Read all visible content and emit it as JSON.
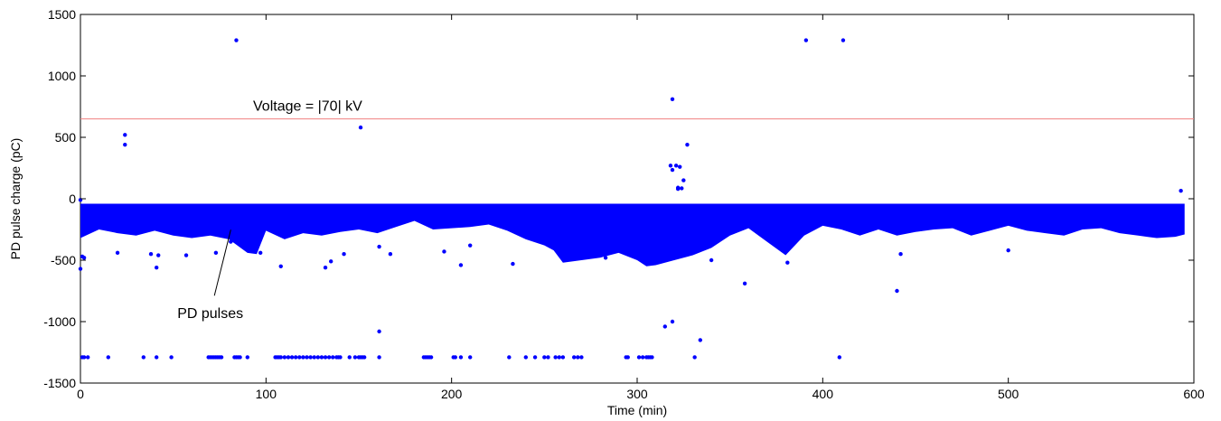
{
  "chart_data": {
    "type": "scatter",
    "title": "",
    "xlabel": "Time (min)",
    "ylabel": "PD pulse charge (pC)",
    "xlim": [
      0,
      600
    ],
    "ylim": [
      -1500,
      1500
    ],
    "xticks": [
      0,
      100,
      200,
      300,
      400,
      500,
      600
    ],
    "yticks": [
      -1500,
      -1000,
      -500,
      0,
      500,
      1000,
      1500
    ],
    "grid": false,
    "colors": {
      "points": "#0000ff",
      "threshold": "#f08080",
      "axis": "#000000"
    },
    "threshold_line": {
      "y": 650,
      "x_range": [
        0,
        600
      ],
      "label": "Voltage = |70| kV"
    },
    "annotations": [
      {
        "text": "PD pulses",
        "target": [
          82,
          -230
        ],
        "text_at": [
          60,
          -950
        ]
      }
    ],
    "band": {
      "x_range": [
        0,
        595
      ],
      "top": -40,
      "envelope": [
        [
          0,
          -320
        ],
        [
          10,
          -250
        ],
        [
          20,
          -280
        ],
        [
          30,
          -300
        ],
        [
          40,
          -260
        ],
        [
          50,
          -300
        ],
        [
          60,
          -320
        ],
        [
          70,
          -300
        ],
        [
          80,
          -330
        ],
        [
          90,
          -440
        ],
        [
          95,
          -450
        ],
        [
          100,
          -260
        ],
        [
          110,
          -330
        ],
        [
          120,
          -280
        ],
        [
          130,
          -300
        ],
        [
          140,
          -270
        ],
        [
          150,
          -250
        ],
        [
          160,
          -280
        ],
        [
          170,
          -230
        ],
        [
          180,
          -180
        ],
        [
          190,
          -250
        ],
        [
          200,
          -240
        ],
        [
          210,
          -230
        ],
        [
          220,
          -210
        ],
        [
          230,
          -260
        ],
        [
          240,
          -330
        ],
        [
          250,
          -380
        ],
        [
          255,
          -420
        ],
        [
          260,
          -520
        ],
        [
          270,
          -500
        ],
        [
          280,
          -480
        ],
        [
          290,
          -440
        ],
        [
          300,
          -500
        ],
        [
          305,
          -550
        ],
        [
          310,
          -540
        ],
        [
          320,
          -500
        ],
        [
          330,
          -460
        ],
        [
          340,
          -400
        ],
        [
          350,
          -300
        ],
        [
          360,
          -240
        ],
        [
          370,
          -350
        ],
        [
          380,
          -460
        ],
        [
          390,
          -300
        ],
        [
          400,
          -220
        ],
        [
          410,
          -250
        ],
        [
          420,
          -300
        ],
        [
          430,
          -250
        ],
        [
          440,
          -300
        ],
        [
          450,
          -270
        ],
        [
          460,
          -250
        ],
        [
          470,
          -240
        ],
        [
          480,
          -300
        ],
        [
          490,
          -260
        ],
        [
          500,
          -220
        ],
        [
          510,
          -260
        ],
        [
          520,
          -280
        ],
        [
          530,
          -300
        ],
        [
          540,
          -250
        ],
        [
          550,
          -240
        ],
        [
          560,
          -280
        ],
        [
          570,
          -300
        ],
        [
          580,
          -320
        ],
        [
          590,
          -310
        ],
        [
          595,
          -290
        ]
      ]
    },
    "points": [
      [
        0,
        -10
      ],
      [
        1,
        -470
      ],
      [
        2,
        -480
      ],
      [
        0,
        -570
      ],
      [
        24,
        520
      ],
      [
        24,
        440
      ],
      [
        84,
        1290
      ],
      [
        151,
        580
      ],
      [
        319,
        810
      ],
      [
        318,
        270
      ],
      [
        321,
        270
      ],
      [
        319,
        235
      ],
      [
        323,
        260
      ],
      [
        327,
        440
      ],
      [
        325,
        150
      ],
      [
        322,
        90
      ],
      [
        322,
        80
      ],
      [
        324,
        85
      ],
      [
        391,
        1290
      ],
      [
        411,
        1290
      ],
      [
        593,
        65
      ],
      [
        20,
        -440
      ],
      [
        38,
        -450
      ],
      [
        41,
        -560
      ],
      [
        42,
        -460
      ],
      [
        57,
        -460
      ],
      [
        73,
        -440
      ],
      [
        81,
        -350
      ],
      [
        97,
        -440
      ],
      [
        108,
        -550
      ],
      [
        132,
        -560
      ],
      [
        135,
        -510
      ],
      [
        142,
        -450
      ],
      [
        161,
        -390
      ],
      [
        167,
        -450
      ],
      [
        196,
        -430
      ],
      [
        205,
        -540
      ],
      [
        210,
        -380
      ],
      [
        233,
        -530
      ],
      [
        283,
        -480
      ],
      [
        297,
        -450
      ],
      [
        340,
        -500
      ],
      [
        358,
        -690
      ],
      [
        381,
        -520
      ],
      [
        440,
        -750
      ],
      [
        442,
        -450
      ],
      [
        500,
        -420
      ],
      [
        161,
        -1080
      ],
      [
        315,
        -1040
      ],
      [
        319,
        -1000
      ],
      [
        334,
        -1150
      ],
      [
        1,
        -1290
      ],
      [
        2,
        -1290
      ],
      [
        4,
        -1290
      ],
      [
        15,
        -1290
      ],
      [
        34,
        -1290
      ],
      [
        41,
        -1290
      ],
      [
        49,
        -1290
      ],
      [
        69,
        -1290
      ],
      [
        70,
        -1290
      ],
      [
        71,
        -1290
      ],
      [
        72,
        -1290
      ],
      [
        73,
        -1290
      ],
      [
        74,
        -1290
      ],
      [
        75,
        -1290
      ],
      [
        76,
        -1290
      ],
      [
        83,
        -1290
      ],
      [
        84,
        -1290
      ],
      [
        85,
        -1290
      ],
      [
        86,
        -1290
      ],
      [
        90,
        -1290
      ],
      [
        105,
        -1290
      ],
      [
        106,
        -1290
      ],
      [
        107,
        -1290
      ],
      [
        108,
        -1290
      ],
      [
        110,
        -1290
      ],
      [
        112,
        -1290
      ],
      [
        114,
        -1290
      ],
      [
        116,
        -1290
      ],
      [
        118,
        -1290
      ],
      [
        120,
        -1290
      ],
      [
        122,
        -1290
      ],
      [
        124,
        -1290
      ],
      [
        126,
        -1290
      ],
      [
        128,
        -1290
      ],
      [
        130,
        -1290
      ],
      [
        132,
        -1290
      ],
      [
        134,
        -1290
      ],
      [
        136,
        -1290
      ],
      [
        138,
        -1290
      ],
      [
        139,
        -1290
      ],
      [
        140,
        -1290
      ],
      [
        145,
        -1290
      ],
      [
        148,
        -1290
      ],
      [
        150,
        -1290
      ],
      [
        151,
        -1290
      ],
      [
        152,
        -1290
      ],
      [
        153,
        -1290
      ],
      [
        161,
        -1290
      ],
      [
        185,
        -1290
      ],
      [
        186,
        -1290
      ],
      [
        187,
        -1290
      ],
      [
        188,
        -1290
      ],
      [
        189,
        -1290
      ],
      [
        201,
        -1290
      ],
      [
        202,
        -1290
      ],
      [
        205,
        -1290
      ],
      [
        210,
        -1290
      ],
      [
        231,
        -1290
      ],
      [
        240,
        -1290
      ],
      [
        245,
        -1290
      ],
      [
        250,
        -1290
      ],
      [
        252,
        -1290
      ],
      [
        256,
        -1290
      ],
      [
        258,
        -1290
      ],
      [
        260,
        -1290
      ],
      [
        266,
        -1290
      ],
      [
        268,
        -1290
      ],
      [
        270,
        -1290
      ],
      [
        294,
        -1290
      ],
      [
        295,
        -1290
      ],
      [
        301,
        -1290
      ],
      [
        303,
        -1290
      ],
      [
        305,
        -1290
      ],
      [
        306,
        -1290
      ],
      [
        307,
        -1290
      ],
      [
        308,
        -1290
      ],
      [
        331,
        -1290
      ],
      [
        409,
        -1290
      ]
    ]
  }
}
